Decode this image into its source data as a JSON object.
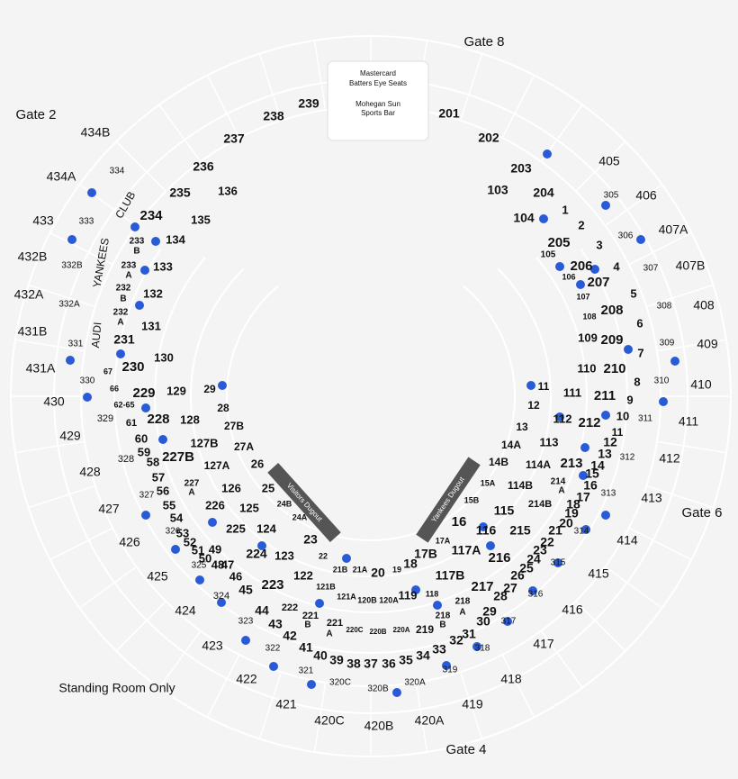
{
  "gates": [
    "Gate 8",
    "Gate 2",
    "Gate 6",
    "Gate 4"
  ],
  "note": "Standing Room Only",
  "venues": [
    "Mastercard",
    "Batters Eye Seats",
    "Mohegan Sun",
    "Sports Bar"
  ],
  "dugouts": [
    "Visitors Dugout",
    "Yankees Dugout"
  ],
  "sponsor_labels": [
    "CLUB",
    "YANKEES",
    "AUDI"
  ],
  "upper_sections": [
    "434B",
    "434A",
    "433",
    "432B",
    "432A",
    "431B",
    "431A",
    "430",
    "429",
    "428",
    "427",
    "426",
    "425",
    "424",
    "423",
    "422",
    "421",
    "420C",
    "420B",
    "420A",
    "419",
    "418",
    "417",
    "416",
    "415",
    "414",
    "413",
    "412",
    "411",
    "410",
    "409",
    "408",
    "407B",
    "407A",
    "406",
    "405"
  ],
  "terrace_sections": [
    "334",
    "333",
    "332B",
    "332A",
    "331",
    "330",
    "329",
    "328",
    "327",
    "326",
    "325",
    "324",
    "323",
    "322",
    "321",
    "320C",
    "320B",
    "320A",
    "319",
    "318",
    "317",
    "316",
    "315",
    "314",
    "313",
    "312",
    "311",
    "310",
    "309",
    "308",
    "307",
    "306",
    "305"
  ],
  "main_sections": [
    "239",
    "238",
    "237",
    "236",
    "235",
    "234",
    "233",
    "B",
    "233",
    "A",
    "232",
    "B",
    "232",
    "A",
    "231",
    "230",
    "229",
    "228",
    "227B",
    "227",
    "A",
    "226",
    "225",
    "224",
    "223",
    "222",
    "221",
    "B",
    "221",
    "A",
    "220C",
    "220B",
    "220A",
    "219",
    "218",
    "B",
    "218",
    "A",
    "217",
    "216",
    "215",
    "214B",
    "214",
    "A",
    "213",
    "212",
    "211",
    "210",
    "209",
    "208",
    "207",
    "206",
    "205",
    "204",
    "203",
    "202",
    "201"
  ],
  "field_sections": [
    "136",
    "135",
    "134",
    "133",
    "132",
    "131",
    "130",
    "129",
    "128",
    "127B",
    "127A",
    "126",
    "125",
    "124",
    "123",
    "122",
    "121B",
    "121A",
    "120B",
    "120A",
    "119",
    "118",
    "117B",
    "117A",
    "116",
    "115",
    "114B",
    "114A",
    "113",
    "112",
    "111",
    "110",
    "109",
    "108",
    "107",
    "106",
    "105",
    "104",
    "103"
  ],
  "rows": [
    "29",
    "28",
    "27B",
    "27A",
    "26",
    "25",
    "24B",
    "24A",
    "23",
    "22",
    "21B",
    "21A",
    "20",
    "19",
    "18",
    "17B",
    "17A",
    "16",
    "15B",
    "15A",
    "14B",
    "14A",
    "13",
    "12",
    "11",
    "67",
    "66",
    "62-65",
    "61",
    "60",
    "59",
    "58",
    "57",
    "56",
    "55",
    "54",
    "53",
    "52",
    "51",
    "50",
    "49",
    "48",
    "47",
    "46",
    "45",
    "44",
    "43",
    "42",
    "41",
    "40",
    "39",
    "38",
    "37",
    "36",
    "35",
    "34",
    "33",
    "32",
    "31",
    "30",
    "29",
    "28",
    "27",
    "26",
    "25",
    "24",
    "23",
    "22",
    "21",
    "20",
    "19",
    "18",
    "17",
    "16",
    "15",
    "14",
    "13",
    "12",
    "11",
    "10",
    "9",
    "8",
    "7",
    "6",
    "5",
    "4",
    "3",
    "2",
    "1"
  ]
}
